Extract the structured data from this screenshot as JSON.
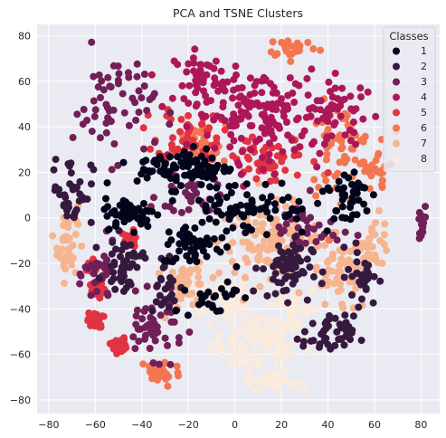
{
  "chart_data": {
    "type": "scatter",
    "title": "PCA and TSNE Clusters",
    "xlabel": "",
    "ylabel": "",
    "xlim": [
      -85,
      88
    ],
    "ylim": [
      -86,
      85
    ],
    "xticks": [
      -80,
      -60,
      -40,
      -20,
      0,
      20,
      40,
      60,
      80
    ],
    "yticks": [
      -80,
      -60,
      -40,
      -20,
      0,
      20,
      40,
      60,
      80
    ],
    "grid": true,
    "legend": {
      "title": "Classes",
      "placement": "top-right"
    },
    "background": "#eaeaf2",
    "series": [
      {
        "name": "1",
        "color": "#03051a",
        "clusters": [
          {
            "center": [
              -22,
              22
            ],
            "spread": [
              18,
              8
            ],
            "count": 90
          },
          {
            "center": [
              -45,
              2
            ],
            "spread": [
              10,
              6
            ],
            "count": 60
          },
          {
            "center": [
              -18,
              -12
            ],
            "spread": [
              12,
              8
            ],
            "count": 50
          },
          {
            "center": [
              5,
              5
            ],
            "spread": [
              25,
              12
            ],
            "count": 80
          },
          {
            "center": [
              48,
              10
            ],
            "spread": [
              10,
              12
            ],
            "count": 40
          },
          {
            "center": [
              -10,
              -35
            ],
            "spread": [
              10,
              8
            ],
            "count": 25
          }
        ]
      },
      {
        "name": "2",
        "color": "#36193e",
        "clusters": [
          {
            "center": [
              -48,
              -20
            ],
            "spread": [
              7,
              10
            ],
            "count": 45
          },
          {
            "center": [
              -70,
              12
            ],
            "spread": [
              8,
              14
            ],
            "count": 40
          },
          {
            "center": [
              22,
              -22
            ],
            "spread": [
              10,
              12
            ],
            "count": 60
          },
          {
            "center": [
              40,
              -52
            ],
            "spread": [
              10,
              8
            ],
            "count": 45
          },
          {
            "center": [
              -30,
              -30
            ],
            "spread": [
              6,
              14
            ],
            "count": 30
          },
          {
            "center": [
              55,
              -25
            ],
            "spread": [
              6,
              12
            ],
            "count": 30
          }
        ]
      },
      {
        "name": "3",
        "color": "#701f57",
        "clusters": [
          {
            "center": [
              -52,
              50
            ],
            "spread": [
              16,
              22
            ],
            "count": 60
          },
          {
            "center": [
              -35,
              -48
            ],
            "spread": [
              12,
              12
            ],
            "count": 50
          },
          {
            "center": [
              -58,
              -25
            ],
            "spread": [
              6,
              12
            ],
            "count": 30
          },
          {
            "center": [
              80,
              -5
            ],
            "spread": [
              2,
              10
            ],
            "count": 15
          },
          {
            "center": [
              30,
              -5
            ],
            "spread": [
              14,
              12
            ],
            "count": 35
          },
          {
            "center": [
              -20,
              10
            ],
            "spread": [
              12,
              10
            ],
            "count": 30
          }
        ]
      },
      {
        "name": "4",
        "color": "#ad1759",
        "clusters": [
          {
            "center": [
              10,
              45
            ],
            "spread": [
              25,
              18
            ],
            "count": 160
          },
          {
            "center": [
              -15,
              62
            ],
            "spread": [
              10,
              10
            ],
            "count": 40
          },
          {
            "center": [
              45,
              45
            ],
            "spread": [
              14,
              14
            ],
            "count": 50
          }
        ]
      },
      {
        "name": "5",
        "color": "#e13342",
        "clusters": [
          {
            "center": [
              -20,
              38
            ],
            "spread": [
              12,
              12
            ],
            "count": 50
          },
          {
            "center": [
              -62,
              -22
            ],
            "spread": [
              3,
              3
            ],
            "count": 25
          },
          {
            "center": [
              -60,
              -32
            ],
            "spread": [
              3,
              3
            ],
            "count": 25
          },
          {
            "center": [
              -60,
              -45
            ],
            "spread": [
              3,
              3
            ],
            "count": 30
          },
          {
            "center": [
              -50,
              -56
            ],
            "spread": [
              3,
              3
            ],
            "count": 30
          },
          {
            "center": [
              -45,
              -10
            ],
            "spread": [
              3,
              4
            ],
            "count": 20
          },
          {
            "center": [
              15,
              25
            ],
            "spread": [
              20,
              10
            ],
            "count": 50
          }
        ]
      },
      {
        "name": "6",
        "color": "#f37651",
        "clusters": [
          {
            "center": [
              45,
              30
            ],
            "spread": [
              14,
              18
            ],
            "count": 70
          },
          {
            "center": [
              -15,
              30
            ],
            "spread": [
              10,
              10
            ],
            "count": 30
          },
          {
            "center": [
              -32,
              -68
            ],
            "spread": [
              8,
              6
            ],
            "count": 35
          },
          {
            "center": [
              25,
              75
            ],
            "spread": [
              10,
              4
            ],
            "count": 25
          },
          {
            "center": [
              62,
              20
            ],
            "spread": [
              6,
              8
            ],
            "count": 20
          }
        ]
      },
      {
        "name": "7",
        "color": "#f6b48f",
        "clusters": [
          {
            "center": [
              -72,
              -10
            ],
            "spread": [
              4,
              16
            ],
            "count": 45
          },
          {
            "center": [
              15,
              -10
            ],
            "spread": [
              20,
              14
            ],
            "count": 110
          },
          {
            "center": [
              45,
              -25
            ],
            "spread": [
              12,
              16
            ],
            "count": 60
          },
          {
            "center": [
              -20,
              -30
            ],
            "spread": [
              8,
              10
            ],
            "count": 40
          },
          {
            "center": [
              60,
              -10
            ],
            "spread": [
              6,
              10
            ],
            "count": 30
          }
        ]
      },
      {
        "name": "8",
        "color": "#faebdd",
        "clusters": [
          {
            "center": [
              10,
              -55
            ],
            "spread": [
              18,
              12
            ],
            "count": 100
          },
          {
            "center": [
              -5,
              -35
            ],
            "spread": [
              10,
              8
            ],
            "count": 45
          },
          {
            "center": [
              25,
              -40
            ],
            "spread": [
              10,
              10
            ],
            "count": 40
          },
          {
            "center": [
              15,
              -72
            ],
            "spread": [
              10,
              3
            ],
            "count": 30
          }
        ]
      }
    ]
  }
}
